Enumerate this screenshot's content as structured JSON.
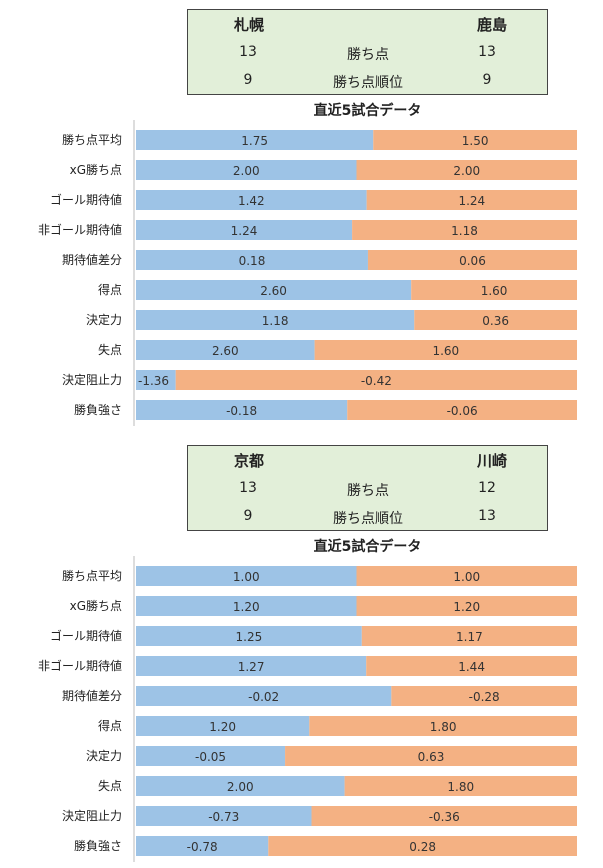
{
  "colors": {
    "left": "#9dc3e6",
    "right": "#f4b183",
    "box_bg": "#e2efd9"
  },
  "panels": [
    {
      "info": {
        "left_team": "札幌",
        "right_team": "鹿島",
        "rows": [
          {
            "left": "13",
            "label": "勝ち点",
            "right": "13"
          },
          {
            "left": "9",
            "label": "勝ち点順位",
            "right": "9"
          }
        ]
      },
      "subtitle": "直近5試合データ"
    },
    {
      "info": {
        "left_team": "京都",
        "right_team": "川崎",
        "rows": [
          {
            "left": "13",
            "label": "勝ち点",
            "right": "12"
          },
          {
            "left": "9",
            "label": "勝ち点順位",
            "right": "13"
          }
        ]
      },
      "subtitle": "直近5試合データ"
    }
  ],
  "chart_data": [
    {
      "type": "bar",
      "stacked": "100%-horizontal",
      "categories": [
        "勝ち点平均",
        "xG勝ち点",
        "ゴール期待値",
        "非ゴール期待値",
        "期待値差分",
        "得点",
        "決定力",
        "失点",
        "決定阻止力",
        "勝負強さ"
      ],
      "series": [
        {
          "name": "札幌",
          "values": [
            1.75,
            2.0,
            1.42,
            1.24,
            0.18,
            2.6,
            1.18,
            2.6,
            -1.36,
            -0.18
          ]
        },
        {
          "name": "鹿島",
          "values": [
            1.5,
            2.0,
            1.24,
            1.18,
            0.06,
            1.6,
            0.36,
            1.6,
            -0.42,
            -0.06
          ]
        }
      ],
      "left_share": [
        0.538,
        0.5,
        0.523,
        0.49,
        0.526,
        0.624,
        0.631,
        0.405,
        0.09,
        0.479
      ],
      "labels": {
        "left": [
          "1.75",
          "2.00",
          "1.42",
          "1.24",
          "0.18",
          "2.60",
          "1.18",
          "2.60",
          "-1.36",
          "-0.18"
        ],
        "right": [
          "1.50",
          "2.00",
          "1.24",
          "1.18",
          "0.06",
          "1.60",
          "0.36",
          "1.60",
          "-0.42",
          "-0.06"
        ]
      }
    },
    {
      "type": "bar",
      "stacked": "100%-horizontal",
      "categories": [
        "勝ち点平均",
        "xG勝ち点",
        "ゴール期待値",
        "非ゴール期待値",
        "期待値差分",
        "得点",
        "決定力",
        "失点",
        "決定阻止力",
        "勝負強さ"
      ],
      "series": [
        {
          "name": "京都",
          "values": [
            1.0,
            1.2,
            1.25,
            1.27,
            -0.02,
            1.2,
            -0.05,
            2.0,
            -0.73,
            -0.78
          ]
        },
        {
          "name": "川崎",
          "values": [
            1.0,
            1.2,
            1.17,
            1.44,
            -0.28,
            1.8,
            0.63,
            1.8,
            -0.36,
            0.28
          ]
        }
      ],
      "left_share": [
        0.5,
        0.5,
        0.512,
        0.522,
        0.579,
        0.393,
        0.338,
        0.473,
        0.398,
        0.3
      ],
      "labels": {
        "left": [
          "1.00",
          "1.20",
          "1.25",
          "1.27",
          "-0.02",
          "1.20",
          "-0.05",
          "2.00",
          "-0.73",
          "-0.78"
        ],
        "right": [
          "1.00",
          "1.20",
          "1.17",
          "1.44",
          "-0.28",
          "1.80",
          "0.63",
          "1.80",
          "-0.36",
          "0.28"
        ]
      }
    }
  ]
}
